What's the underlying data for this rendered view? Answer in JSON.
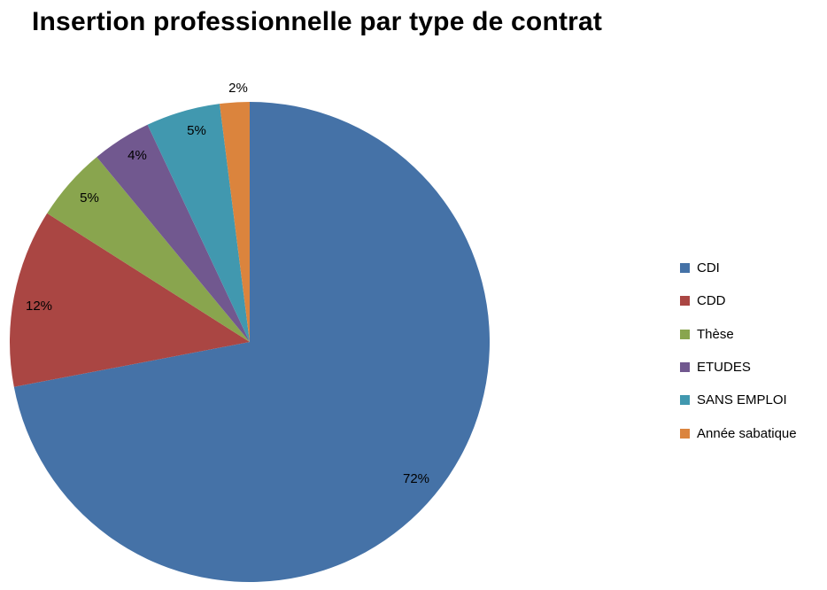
{
  "chart_data": {
    "type": "pie",
    "title": "Insertion professionnelle par type de contrat",
    "categories": [
      "CDI",
      "CDD",
      "Thèse",
      "ETUDES",
      "SANS EMPLOI",
      "Année sabatique"
    ],
    "values": [
      72,
      12,
      5,
      4,
      5,
      2
    ],
    "data_labels": [
      "72%",
      "12%",
      "5%",
      "4%",
      "5%",
      "2%"
    ],
    "colors": [
      "#4572A7",
      "#AA4643",
      "#89A54E",
      "#71588F",
      "#4198AF",
      "#DB843D"
    ],
    "start": "12 o'clock",
    "direction": "clockwise",
    "legend_position": "right"
  }
}
